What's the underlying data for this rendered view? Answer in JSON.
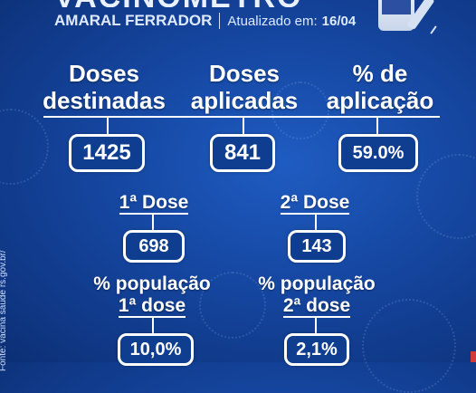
{
  "header": {
    "title": "VACINÔMETRO",
    "city": "AMARAL FERRADOR",
    "updated_label": "Atualizado em:",
    "updated_date": "16/04"
  },
  "summary": {
    "destined": {
      "label_line1": "Doses",
      "label_line2": "destinadas",
      "value": "1425"
    },
    "applied": {
      "label_line1": "Doses",
      "label_line2": "aplicadas",
      "value": "841"
    },
    "percent": {
      "label_line1": "% de",
      "label_line2": "aplicação",
      "value": "59.0%"
    }
  },
  "doses": {
    "first": {
      "label": "1ª Dose",
      "value": "698"
    },
    "second": {
      "label": "2ª Dose",
      "value": "143"
    }
  },
  "population": {
    "first": {
      "label_line1": "% população",
      "label_line2": "1ª dose",
      "value": "10,0%"
    },
    "second": {
      "label_line1": "% população",
      "label_line2": "2ª dose",
      "value": "2,1%"
    }
  },
  "source": "Fonte: vacina saude rs.gov.br/",
  "colors": {
    "background": "#1546a0",
    "box_fill": "#0f3d8f",
    "stroke": "#ffffff"
  },
  "icons": [
    "vaccine-vial-icon",
    "syringe-icon",
    "virus-decoration"
  ]
}
